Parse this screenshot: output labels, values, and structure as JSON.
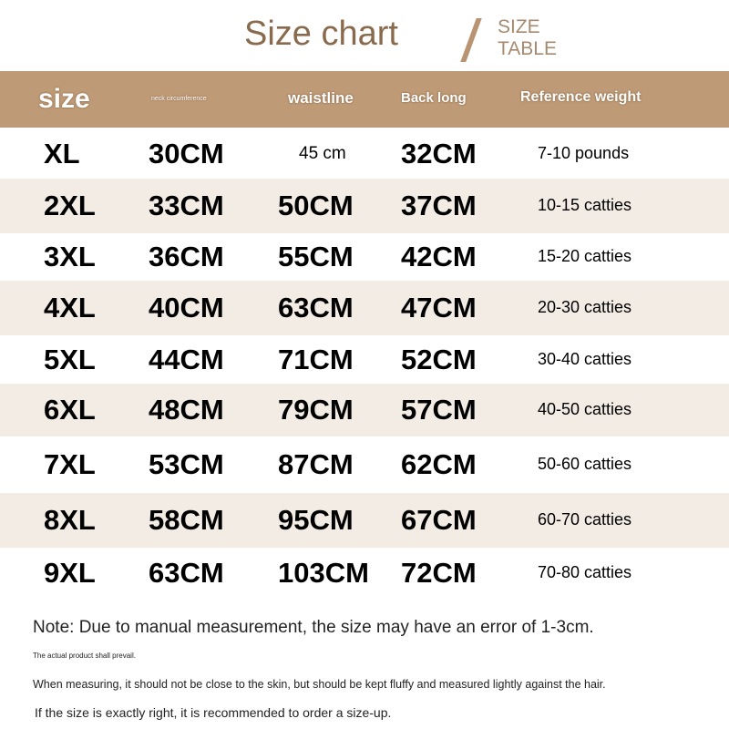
{
  "title": "Size chart",
  "subtitle_line1": "SIZE",
  "subtitle_line2": "TABLE",
  "columns": {
    "size": "size",
    "neck": "neck circumference",
    "waist": "waistline",
    "back": "Back long",
    "weight": "Reference weight"
  },
  "rows": [
    {
      "size": "XL",
      "neck": "30CM",
      "waist": "45 cm",
      "back": "32CM",
      "weight": "7-10 pounds"
    },
    {
      "size": "2XL",
      "neck": "33CM",
      "waist": "50CM",
      "back": "37CM",
      "weight": "10-15 catties"
    },
    {
      "size": "3XL",
      "neck": "36CM",
      "waist": "55CM",
      "back": "42CM",
      "weight": "15-20 catties"
    },
    {
      "size": "4XL",
      "neck": "40CM",
      "waist": "63CM",
      "back": "47CM",
      "weight": "20-30 catties"
    },
    {
      "size": "5XL",
      "neck": "44CM",
      "waist": "71CM",
      "back": "52CM",
      "weight": "30-40 catties"
    },
    {
      "size": "6XL",
      "neck": "48CM",
      "waist": "79CM",
      "back": "57CM",
      "weight": "40-50 catties"
    },
    {
      "size": "7XL",
      "neck": "53CM",
      "waist": "87CM",
      "back": "62CM",
      "weight": "50-60 catties"
    },
    {
      "size": "8XL",
      "neck": "58CM",
      "waist": "95CM",
      "back": "67CM",
      "weight": "60-70 catties"
    },
    {
      "size": "9XL",
      "neck": "63CM",
      "waist": "103CM",
      "back": "72CM",
      "weight": "70-80 catties"
    }
  ],
  "notes": [
    "Note: Due to manual measurement, the size may have an error of 1-3cm.",
    "The actual product shall prevail.",
    "When measuring, it should not be close to the skin, but should be kept fluffy and measured lightly against the hair.",
    "If the size is exactly right, it is recommended to order a size-up."
  ]
}
